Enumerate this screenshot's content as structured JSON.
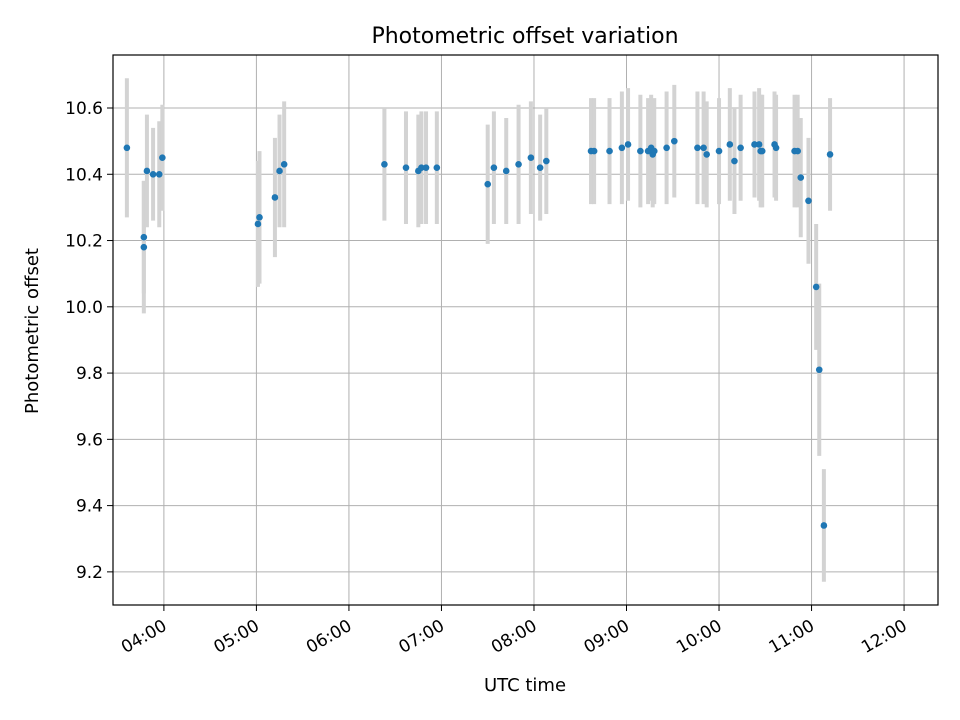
{
  "chart_data": {
    "type": "scatter",
    "title": "Photometric offset variation",
    "xlabel": "UTC time",
    "ylabel": "Photometric offset",
    "xlim": [
      "03:27",
      "12:22"
    ],
    "ylim": [
      9.1,
      10.76
    ],
    "grid": true,
    "legend": "none",
    "x_ticks": [
      "04:00",
      "05:00",
      "06:00",
      "07:00",
      "08:00",
      "09:00",
      "10:00",
      "11:00",
      "12:00"
    ],
    "y_ticks": [
      9.2,
      9.4,
      9.6,
      9.8,
      10.0,
      10.2,
      10.4,
      10.6
    ],
    "y_tick_labels": [
      "9.2",
      "9.4",
      "9.6",
      "9.8",
      "10.0",
      "10.2",
      "10.4",
      "10.6"
    ],
    "colors": {
      "points": "#1f77b4",
      "errorbars": "#d3d3d3",
      "grid": "#b0b0b0"
    },
    "series": [
      {
        "x": [
          "03:36",
          "03:47",
          "03:47",
          "03:49",
          "03:53",
          "03:57",
          "03:59",
          "05:01",
          "05:02",
          "05:12",
          "05:15",
          "05:18",
          "06:23",
          "06:37",
          "06:45",
          "06:47",
          "06:50",
          "06:57",
          "07:30",
          "07:34",
          "07:42",
          "07:50",
          "07:58",
          "08:04",
          "08:08",
          "08:37",
          "08:39",
          "08:49",
          "08:57",
          "09:01",
          "09:09",
          "09:14",
          "09:16",
          "09:17",
          "09:18",
          "09:26",
          "09:31",
          "09:46",
          "09:50",
          "09:52",
          "10:00",
          "10:07",
          "10:10",
          "10:14",
          "10:23",
          "10:26",
          "10:27",
          "10:28",
          "10:36",
          "10:37",
          "10:49",
          "10:51",
          "10:53",
          "10:58",
          "11:03",
          "11:05",
          "11:08",
          "11:12"
        ],
        "y": [
          10.48,
          10.18,
          10.21,
          10.41,
          10.4,
          10.4,
          10.45,
          10.25,
          10.27,
          10.33,
          10.41,
          10.43,
          10.43,
          10.42,
          10.41,
          10.42,
          10.42,
          10.42,
          10.37,
          10.42,
          10.41,
          10.43,
          10.45,
          10.42,
          10.44,
          10.47,
          10.47,
          10.47,
          10.48,
          10.49,
          10.47,
          10.47,
          10.48,
          10.46,
          10.47,
          10.48,
          10.5,
          10.48,
          10.48,
          10.46,
          10.47,
          10.49,
          10.44,
          10.48,
          10.49,
          10.49,
          10.47,
          10.47,
          10.49,
          10.48,
          10.47,
          10.47,
          10.39,
          10.32,
          10.06,
          9.81,
          9.34,
          10.46
        ],
        "yerr": [
          0.21,
          0.2,
          0.17,
          0.17,
          0.14,
          0.16,
          0.16,
          0.19,
          0.2,
          0.18,
          0.17,
          0.19,
          0.17,
          0.17,
          0.17,
          0.17,
          0.17,
          0.17,
          0.18,
          0.17,
          0.16,
          0.18,
          0.17,
          0.16,
          0.16,
          0.16,
          0.16,
          0.16,
          0.17,
          0.17,
          0.17,
          0.16,
          0.16,
          0.16,
          0.16,
          0.17,
          0.17,
          0.17,
          0.17,
          0.16,
          0.16,
          0.17,
          0.16,
          0.16,
          0.16,
          0.17,
          0.17,
          0.17,
          0.16,
          0.16,
          0.17,
          0.17,
          0.18,
          0.19,
          0.19,
          0.26,
          0.17,
          0.17
        ]
      }
    ]
  }
}
